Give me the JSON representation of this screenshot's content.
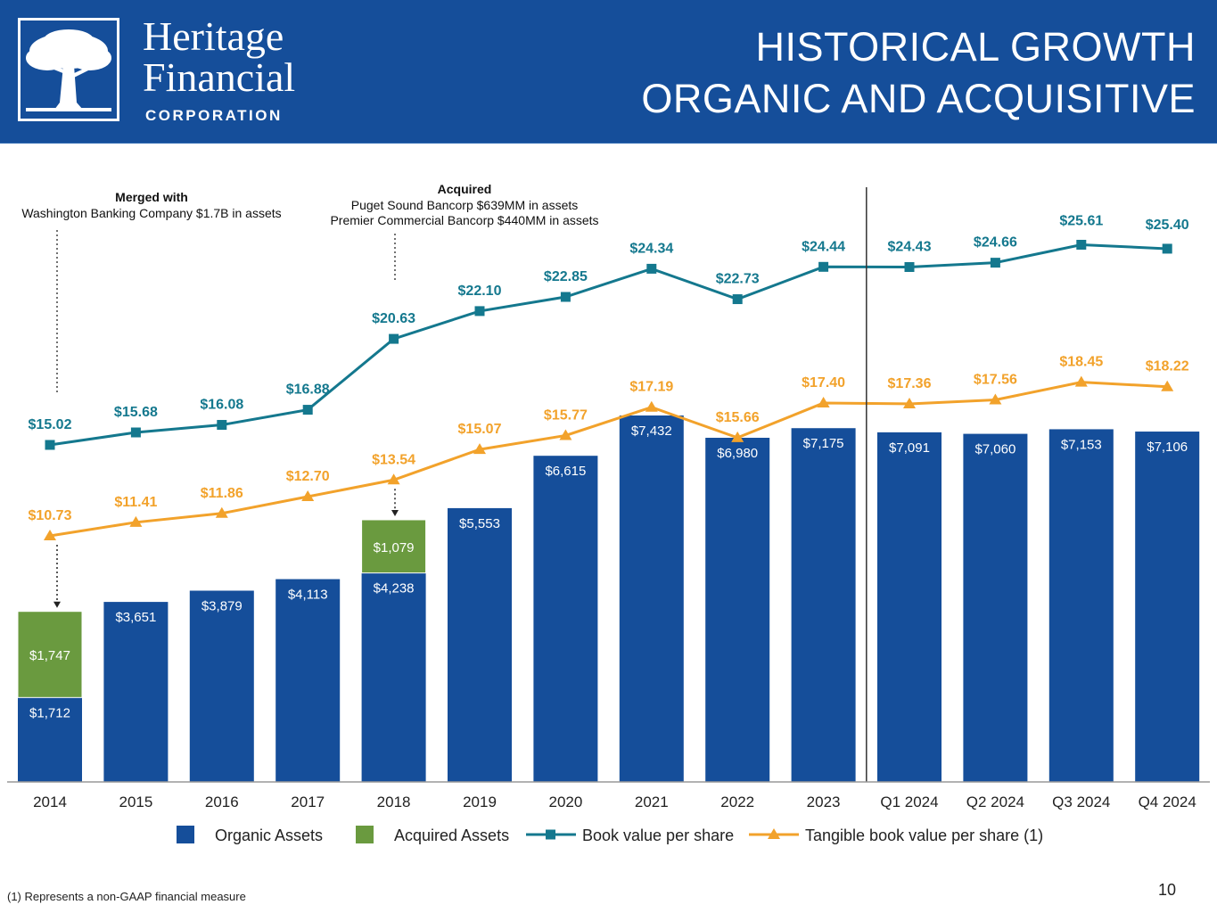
{
  "header": {
    "logo_line1": "Heritage",
    "logo_line2": "Financial",
    "logo_sub": "CORPORATION",
    "title_line1": "HISTORICAL GROWTH",
    "title_line2": "ORGANIC AND ACQUISITIVE",
    "logo_icon": "tree-icon",
    "background_color": "#154e9a"
  },
  "chart_data": {
    "type": "bar",
    "categories": [
      "2014",
      "2015",
      "2016",
      "2017",
      "2018",
      "2019",
      "2020",
      "2021",
      "2022",
      "2023",
      "Q1 2024",
      "Q2 2024",
      "Q3 2024",
      "Q4 2024"
    ],
    "series": [
      {
        "name": "Organic Assets",
        "type": "bar",
        "color": "#154e9a",
        "values": [
          1712,
          3651,
          3879,
          4113,
          4238,
          5553,
          6615,
          7432,
          6980,
          7175,
          7091,
          7060,
          7153,
          7106
        ],
        "labels": [
          "$1,712",
          "$3,651",
          "$3,879",
          "$4,113",
          "$4,238",
          "$5,553",
          "$6,615",
          "$7,432",
          "$6,980",
          "$7,175",
          "$7,091",
          "$7,060",
          "$7,153",
          "$7,106"
        ]
      },
      {
        "name": "Acquired Assets",
        "type": "bar",
        "color": "#6a9a3f",
        "values": [
          1747,
          null,
          null,
          null,
          1079,
          null,
          null,
          null,
          null,
          null,
          null,
          null,
          null,
          null
        ],
        "labels": [
          "$1,747",
          null,
          null,
          null,
          "$1,079",
          null,
          null,
          null,
          null,
          null,
          null,
          null,
          null,
          null
        ]
      },
      {
        "name": "Book value per share",
        "type": "line",
        "marker": "square",
        "color": "#14788e",
        "values": [
          15.02,
          15.68,
          16.08,
          16.88,
          20.63,
          22.1,
          22.85,
          24.34,
          22.73,
          24.44,
          24.43,
          24.66,
          25.61,
          25.4
        ],
        "labels": [
          "$15.02",
          "$15.68",
          "$16.08",
          "$16.88",
          "$20.63",
          "$22.10",
          "$22.85",
          "$24.34",
          "$22.73",
          "$24.44",
          "$24.43",
          "$24.66",
          "$25.61",
          "$25.40"
        ]
      },
      {
        "name": "Tangible book value per share (1)",
        "type": "line",
        "marker": "triangle",
        "color": "#f2a22b",
        "values": [
          10.73,
          11.41,
          11.86,
          12.7,
          13.54,
          15.07,
          15.77,
          17.19,
          15.66,
          17.4,
          17.36,
          17.56,
          18.45,
          18.22
        ],
        "labels": [
          "$10.73",
          "$11.41",
          "$11.86",
          "$12.70",
          "$13.54",
          "$15.07",
          "$15.77",
          "$17.19",
          "$15.66",
          "$17.40",
          "$17.36",
          "$17.56",
          "$18.45",
          "$18.22"
        ]
      }
    ],
    "annotations": [
      {
        "category": "2014",
        "title": "Merged with",
        "lines": [
          "Washington Banking Company $1.7B in assets"
        ]
      },
      {
        "category": "2018",
        "title": "Acquired",
        "lines": [
          "Puget Sound Bancorp $639MM in assets",
          "Premier Commercial Bancorp $440MM in assets"
        ]
      }
    ],
    "divider_after_category": "2023",
    "legend_position": "bottom",
    "gridlines": false
  },
  "footnote": "(1) Represents a non-GAAP financial measure",
  "page_number": "10"
}
